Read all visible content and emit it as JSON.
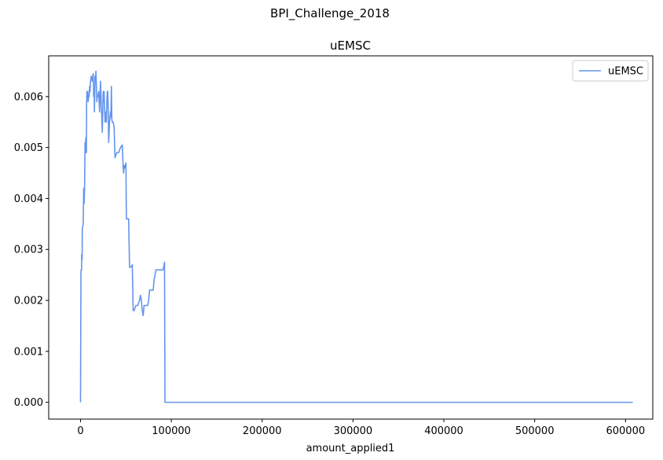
{
  "figure": {
    "suptitle": "BPI_Challenge_2018"
  },
  "chart_data": {
    "type": "line",
    "title": "uEMSC",
    "xlabel": "amount_applied1",
    "ylabel": "",
    "xlim": [
      -35000,
      630000
    ],
    "ylim": [
      -0.00033,
      0.0068
    ],
    "xticks": [
      0,
      100000,
      200000,
      300000,
      400000,
      500000,
      600000
    ],
    "xtick_labels": [
      "0",
      "100000",
      "200000",
      "300000",
      "400000",
      "500000",
      "600000"
    ],
    "yticks": [
      0.0,
      0.001,
      0.002,
      0.003,
      0.004,
      0.005,
      0.006
    ],
    "ytick_labels": [
      "0.000",
      "0.001",
      "0.002",
      "0.003",
      "0.004",
      "0.005",
      "0.006"
    ],
    "grid": false,
    "legend_position": "top-right",
    "series": [
      {
        "name": "uEMSC",
        "color": "#6495ED",
        "x": [
          0,
          500,
          600,
          1200,
          1300,
          1800,
          2000,
          2500,
          3000,
          3500,
          4000,
          4500,
          5000,
          5300,
          5600,
          6000,
          6500,
          6700,
          7000,
          7300,
          7600,
          8000,
          8400,
          9000,
          9500,
          10000,
          10500,
          11000,
          12000,
          13000,
          14000,
          14500,
          15000,
          15300,
          15800,
          16000,
          16500,
          17000,
          17500,
          18000,
          18300,
          19000,
          20000,
          21000,
          22000,
          23000,
          24000,
          24500,
          25000,
          25500,
          26000,
          27000,
          28000,
          28500,
          29000,
          29500,
          30000,
          30500,
          31000,
          32000,
          33000,
          33500,
          34000,
          34500,
          35000,
          36000,
          37000,
          38000,
          39000,
          40000,
          42000,
          44000,
          46000,
          47000,
          47500,
          48000,
          49000,
          50000,
          50500,
          51000,
          53000,
          54000,
          55000,
          56000,
          57000,
          58000,
          59000,
          61000,
          63000,
          65000,
          66000,
          67000,
          68000,
          69000,
          70000,
          72000,
          74000,
          75000,
          76000,
          78000,
          80000,
          81000,
          83000,
          85000,
          88000,
          90000,
          91000,
          92000,
          92500,
          93000,
          100000,
          200000,
          300000,
          400000,
          500000,
          608000
        ],
        "values": [
          0.0,
          0.0025,
          0.0026,
          0.0026,
          0.0029,
          0.0028,
          0.0034,
          0.00345,
          0.0035,
          0.0042,
          0.0039,
          0.0042,
          0.0051,
          0.0049,
          0.0051,
          0.0052,
          0.0049,
          0.0058,
          0.0061,
          0.006,
          0.0061,
          0.0061,
          0.0059,
          0.006,
          0.006,
          0.0062,
          0.0061,
          0.0063,
          0.0064,
          0.0063,
          0.00645,
          0.006,
          0.0061,
          0.0057,
          0.0062,
          0.0064,
          0.0063,
          0.0065,
          0.0062,
          0.0059,
          0.006,
          0.006,
          0.0061,
          0.0057,
          0.0063,
          0.0058,
          0.0053,
          0.0057,
          0.0061,
          0.0059,
          0.0061,
          0.0055,
          0.0057,
          0.0055,
          0.0059,
          0.0061,
          0.0061,
          0.0058,
          0.0051,
          0.0055,
          0.0057,
          0.0056,
          0.0062,
          0.00555,
          0.0055,
          0.0055,
          0.0054,
          0.0048,
          0.00485,
          0.0049,
          0.0049,
          0.005,
          0.00505,
          0.0046,
          0.0045,
          0.00465,
          0.0046,
          0.0047,
          0.0036,
          0.0036,
          0.0036,
          0.00265,
          0.00265,
          0.00267,
          0.0027,
          0.0018,
          0.0018,
          0.0019,
          0.0019,
          0.002,
          0.0021,
          0.002,
          0.0018,
          0.0017,
          0.0019,
          0.0019,
          0.0019,
          0.002,
          0.0022,
          0.0022,
          0.0022,
          0.0024,
          0.0026,
          0.0026,
          0.0026,
          0.0026,
          0.0026,
          0.0027,
          0.00275,
          0.0,
          0.0,
          0.0,
          0.0,
          0.0,
          0.0,
          0.0
        ]
      }
    ]
  }
}
